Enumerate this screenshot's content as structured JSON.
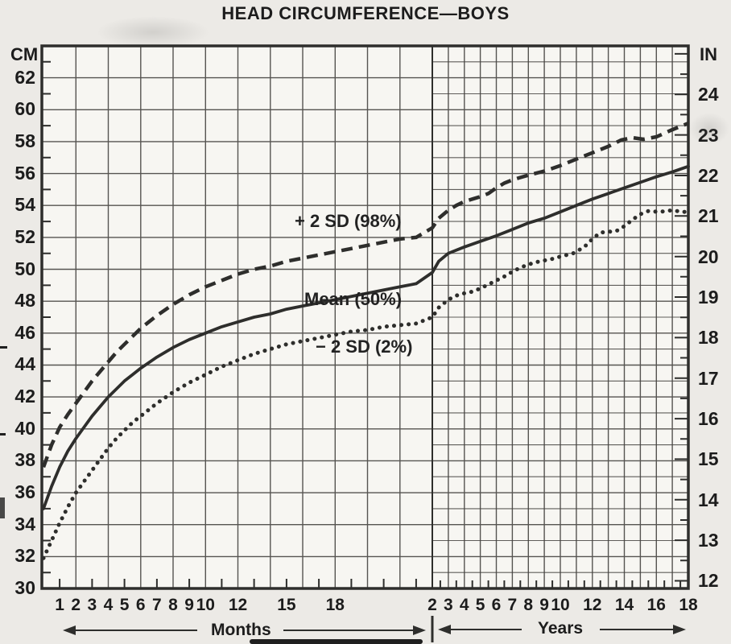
{
  "title": "HEAD CIRCUMFERENCE—BOYS",
  "axes": {
    "left": {
      "unit": "CM",
      "tick_labels": [
        "62",
        "60",
        "58",
        "56",
        "54",
        "52",
        "50",
        "48",
        "46",
        "44",
        "42",
        "40",
        "38",
        "36",
        "34",
        "32",
        "30"
      ]
    },
    "right": {
      "unit": "IN",
      "tick_labels": [
        "24",
        "23",
        "22",
        "21",
        "20",
        "19",
        "18",
        "17",
        "16",
        "15",
        "14",
        "13",
        "12"
      ]
    },
    "bottom": {
      "months_caption": "Months",
      "years_caption": "Years",
      "month_tick_labels": [
        "1",
        "2",
        "3",
        "4",
        "5",
        "6",
        "7",
        "8",
        "9",
        "10",
        "12",
        "15",
        "18"
      ],
      "year_tick_labels": [
        "2",
        "3",
        "4",
        "5",
        "6",
        "7",
        "8",
        "9",
        "10",
        "12",
        "14",
        "16",
        "18"
      ]
    }
  },
  "chart_data": {
    "type": "line",
    "title": "HEAD CIRCUMFERENCE—BOYS",
    "x_axis": {
      "segments": [
        {
          "unit": "months",
          "range": [
            0,
            24
          ]
        },
        {
          "unit": "years",
          "range": [
            2,
            18
          ]
        }
      ],
      "month_ticks": [
        1,
        2,
        3,
        4,
        5,
        6,
        7,
        8,
        9,
        10,
        12,
        15,
        18
      ],
      "year_ticks": [
        2,
        3,
        4,
        5,
        6,
        7,
        8,
        9,
        10,
        12,
        14,
        16,
        18
      ]
    },
    "y_axis": {
      "left_unit": "cm",
      "left_range": [
        30,
        64
      ],
      "left_tick_step": 2,
      "right_unit": "in",
      "right_range": [
        12,
        25
      ],
      "right_tick_step": 1
    },
    "grid": {
      "months_region": "2cm x 2mo",
      "years_region": "1cm x 1yr"
    },
    "series": [
      {
        "name": "+ 2 SD (98%)",
        "style": "dashed",
        "months": [
          [
            0,
            37.6
          ],
          [
            0.5,
            39.0
          ],
          [
            1,
            40.1
          ],
          [
            1.5,
            40.9
          ],
          [
            2,
            41.6
          ],
          [
            2.5,
            42.3
          ],
          [
            3,
            43.0
          ],
          [
            3.5,
            43.6
          ],
          [
            4,
            44.2
          ],
          [
            4.5,
            44.8
          ],
          [
            5,
            45.3
          ],
          [
            5.5,
            45.8
          ],
          [
            6,
            46.3
          ],
          [
            7,
            47.1
          ],
          [
            8,
            47.8
          ],
          [
            9,
            48.4
          ],
          [
            10,
            48.9
          ],
          [
            11,
            49.3
          ],
          [
            12,
            49.7
          ],
          [
            13,
            50.0
          ],
          [
            14,
            50.2
          ],
          [
            15,
            50.5
          ],
          [
            16,
            50.7
          ],
          [
            17,
            50.9
          ],
          [
            18,
            51.1
          ],
          [
            19,
            51.3
          ],
          [
            20,
            51.5
          ],
          [
            21,
            51.7
          ],
          [
            22,
            51.9
          ],
          [
            23,
            52.0
          ],
          [
            24,
            52.6
          ]
        ],
        "years": [
          [
            2,
            52.6
          ],
          [
            2.4,
            53.2
          ],
          [
            3,
            53.7
          ],
          [
            3.5,
            54.0
          ],
          [
            4,
            54.25
          ],
          [
            4.5,
            54.4
          ],
          [
            5,
            54.55
          ],
          [
            5.5,
            54.75
          ],
          [
            6,
            55.1
          ],
          [
            6.5,
            55.4
          ],
          [
            7,
            55.6
          ],
          [
            7.5,
            55.75
          ],
          [
            8,
            55.9
          ],
          [
            9,
            56.15
          ],
          [
            10,
            56.5
          ],
          [
            11,
            56.9
          ],
          [
            12,
            57.3
          ],
          [
            13,
            57.7
          ],
          [
            13.8,
            58.1
          ],
          [
            14.5,
            58.25
          ],
          [
            15.2,
            58.15
          ],
          [
            16,
            58.3
          ],
          [
            17,
            58.75
          ],
          [
            18,
            59.15
          ]
        ]
      },
      {
        "name": "Mean (50%)",
        "style": "solid",
        "months": [
          [
            0,
            35.0
          ],
          [
            0.5,
            36.4
          ],
          [
            1,
            37.6
          ],
          [
            1.5,
            38.6
          ],
          [
            2,
            39.4
          ],
          [
            2.5,
            40.1
          ],
          [
            3,
            40.8
          ],
          [
            3.5,
            41.4
          ],
          [
            4,
            42.0
          ],
          [
            4.5,
            42.5
          ],
          [
            5,
            43.0
          ],
          [
            5.5,
            43.4
          ],
          [
            6,
            43.8
          ],
          [
            7,
            44.5
          ],
          [
            8,
            45.1
          ],
          [
            9,
            45.6
          ],
          [
            10,
            46.0
          ],
          [
            11,
            46.4
          ],
          [
            12,
            46.7
          ],
          [
            13,
            47.0
          ],
          [
            14,
            47.2
          ],
          [
            15,
            47.5
          ],
          [
            16,
            47.7
          ],
          [
            17,
            47.9
          ],
          [
            18,
            48.1
          ],
          [
            19,
            48.3
          ],
          [
            20,
            48.5
          ],
          [
            21,
            48.7
          ],
          [
            22,
            48.9
          ],
          [
            23,
            49.1
          ],
          [
            24,
            49.8
          ]
        ],
        "years": [
          [
            2,
            49.8
          ],
          [
            2.4,
            50.5
          ],
          [
            3,
            51.0
          ],
          [
            3.5,
            51.2
          ],
          [
            4,
            51.4
          ],
          [
            5,
            51.75
          ],
          [
            6,
            52.1
          ],
          [
            7,
            52.5
          ],
          [
            8,
            52.9
          ],
          [
            9,
            53.2
          ],
          [
            10,
            53.6
          ],
          [
            11,
            54.0
          ],
          [
            12,
            54.4
          ],
          [
            13,
            54.75
          ],
          [
            14,
            55.1
          ],
          [
            15,
            55.45
          ],
          [
            16,
            55.8
          ],
          [
            17,
            56.1
          ],
          [
            18,
            56.45
          ]
        ]
      },
      {
        "name": "− 2 SD (2%)",
        "style": "dotted",
        "months": [
          [
            0,
            31.9
          ],
          [
            0.5,
            33.0
          ],
          [
            1,
            34.1
          ],
          [
            1.5,
            35.1
          ],
          [
            2,
            36.0
          ],
          [
            2.5,
            36.7
          ],
          [
            3,
            37.4
          ],
          [
            3.5,
            38.1
          ],
          [
            4,
            38.8
          ],
          [
            4.5,
            39.4
          ],
          [
            5,
            39.9
          ],
          [
            5.5,
            40.4
          ],
          [
            6,
            40.8
          ],
          [
            7,
            41.6
          ],
          [
            8,
            42.3
          ],
          [
            9,
            42.9
          ],
          [
            10,
            43.4
          ],
          [
            11,
            43.9
          ],
          [
            12,
            44.3
          ],
          [
            13,
            44.7
          ],
          [
            14,
            45.0
          ],
          [
            15,
            45.3
          ],
          [
            16,
            45.5
          ],
          [
            17,
            45.7
          ],
          [
            18,
            45.9
          ],
          [
            19,
            46.1
          ],
          [
            20,
            46.2
          ],
          [
            21,
            46.4
          ],
          [
            22,
            46.5
          ],
          [
            23,
            46.6
          ],
          [
            24,
            47.0
          ]
        ],
        "years": [
          [
            2,
            47.0
          ],
          [
            2.4,
            47.6
          ],
          [
            3,
            48.1
          ],
          [
            3.5,
            48.35
          ],
          [
            4,
            48.5
          ],
          [
            4.5,
            48.6
          ],
          [
            5,
            48.8
          ],
          [
            5.5,
            49.05
          ],
          [
            6,
            49.3
          ],
          [
            6.5,
            49.55
          ],
          [
            7,
            49.85
          ],
          [
            7.5,
            50.1
          ],
          [
            8,
            50.3
          ],
          [
            8.5,
            50.45
          ],
          [
            9,
            50.55
          ],
          [
            9.5,
            50.65
          ],
          [
            10,
            50.8
          ],
          [
            10.8,
            51.0
          ],
          [
            11.5,
            51.4
          ],
          [
            12,
            51.9
          ],
          [
            12.5,
            52.3
          ],
          [
            13.5,
            52.4
          ],
          [
            14,
            52.7
          ],
          [
            14.5,
            53.1
          ],
          [
            15,
            53.45
          ],
          [
            15.5,
            53.65
          ],
          [
            16.2,
            53.6
          ],
          [
            17,
            53.7
          ],
          [
            17.6,
            53.6
          ],
          [
            18,
            53.6
          ]
        ]
      }
    ],
    "annotations": {
      "upper_label": "+ 2 SD (98%)",
      "mean_label": "Mean (50%)",
      "lower_label": "− 2 SD (2%)"
    },
    "ink_color": "#2e2e2c",
    "grid_color": "#44423f",
    "paper_color": "#eceae6"
  }
}
